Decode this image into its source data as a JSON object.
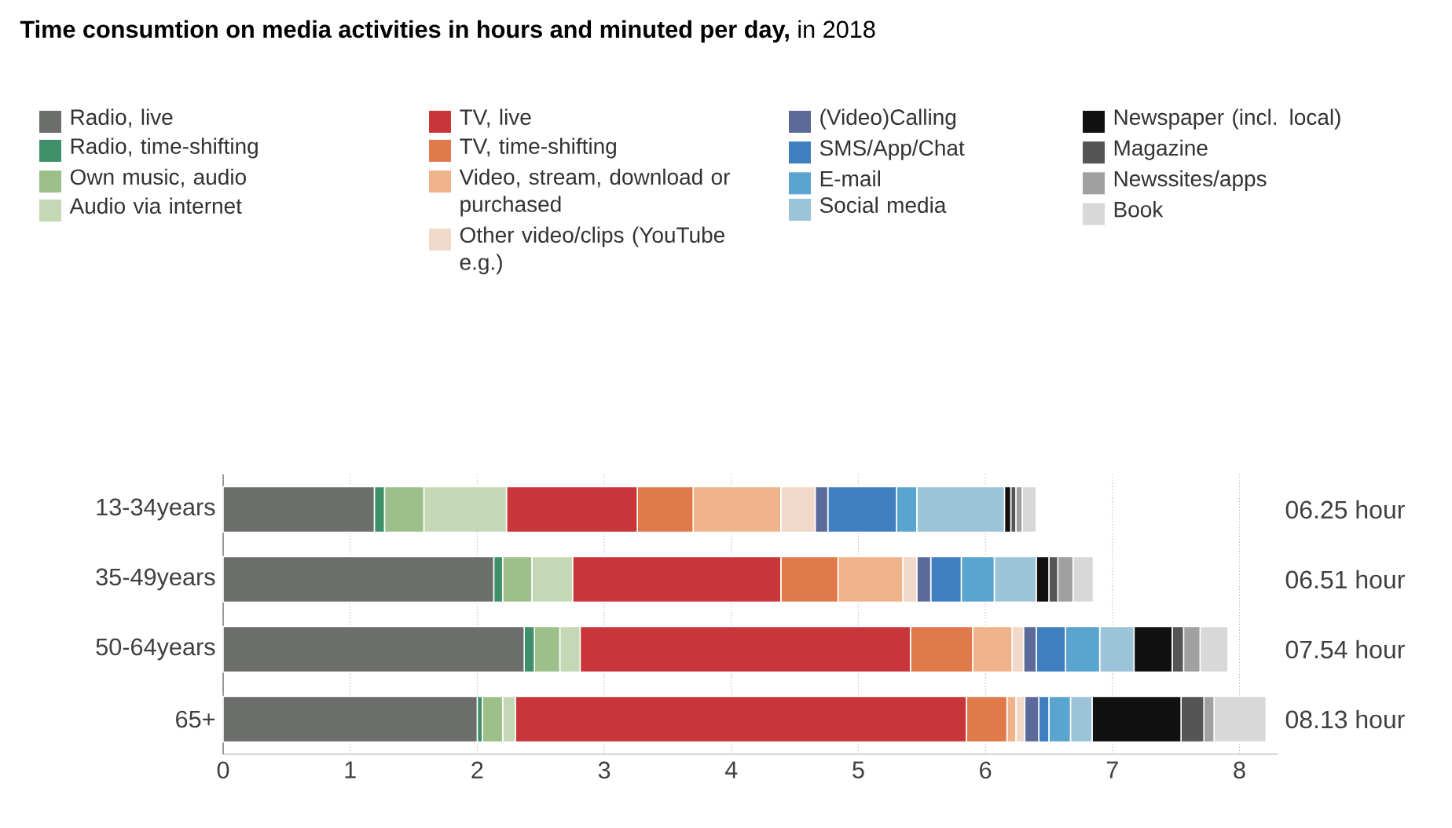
{
  "chart_data": {
    "type": "bar",
    "orientation": "horizontal",
    "stacked": true,
    "title": "**Time consumtion on media activities in hours and minuted per day,** in 2018",
    "categories": [
      "13-34years",
      "35-49years",
      "50-64years",
      "65+"
    ],
    "xlim": [
      0,
      8.3
    ],
    "xticks": [
      0,
      1,
      2,
      3,
      4,
      5,
      6,
      7,
      8
    ],
    "grid": "x",
    "legend": "top",
    "annotations": [
      "06.25 hour",
      "06.51 hour",
      "07.54 hour",
      "08.13 hour"
    ],
    "series": [
      {
        "name": "Radio, live",
        "color": "#6b6e6a",
        "values": [
          1.19,
          2.13,
          2.37,
          2.0
        ]
      },
      {
        "name": "Radio, time-shifting",
        "color": "#3f8f6a",
        "values": [
          0.08,
          0.07,
          0.08,
          0.04
        ]
      },
      {
        "name": "Own music, audio",
        "color": "#9dbf8a",
        "values": [
          0.31,
          0.23,
          0.2,
          0.16
        ]
      },
      {
        "name": "Audio via internet",
        "color": "#c5d8b5",
        "values": [
          0.65,
          0.32,
          0.16,
          0.1
        ]
      },
      {
        "name": "TV, live",
        "color": "#c8363a",
        "values": [
          1.03,
          1.64,
          2.6,
          3.55
        ]
      },
      {
        "name": "TV, time-shifting",
        "color": "#e07a4a",
        "values": [
          0.44,
          0.45,
          0.49,
          0.32
        ]
      },
      {
        "name": "Video, stream, download or purchased",
        "color": "#eeb38a",
        "values": [
          0.69,
          0.51,
          0.31,
          0.07
        ]
      },
      {
        "name": "Other video/clips (YouTube e.g.)",
        "color": "#f2d8c8",
        "values": [
          0.27,
          0.11,
          0.09,
          0.07
        ]
      },
      {
        "name": "(Video)Calling",
        "color": "#5c6a9a",
        "values": [
          0.1,
          0.11,
          0.1,
          0.11
        ]
      },
      {
        "name": "SMS/App/Chat",
        "color": "#3f7fc0",
        "values": [
          0.54,
          0.24,
          0.23,
          0.08
        ]
      },
      {
        "name": "E-mail",
        "color": "#5aa5d0",
        "values": [
          0.16,
          0.26,
          0.27,
          0.17
        ]
      },
      {
        "name": "Social media",
        "color": "#9cc4d8",
        "values": [
          0.69,
          0.33,
          0.27,
          0.17
        ]
      },
      {
        "name": "Newspaper (incl. local)",
        "color": "#111111",
        "values": [
          0.05,
          0.1,
          0.3,
          0.7
        ]
      },
      {
        "name": "Magazine",
        "color": "#555555",
        "values": [
          0.04,
          0.07,
          0.09,
          0.18
        ]
      },
      {
        "name": "Newssites/apps",
        "color": "#a0a0a0",
        "values": [
          0.05,
          0.12,
          0.13,
          0.08
        ]
      },
      {
        "name": "Book",
        "color": "#d8d8d8",
        "values": [
          0.11,
          0.16,
          0.22,
          0.41
        ]
      }
    ]
  }
}
